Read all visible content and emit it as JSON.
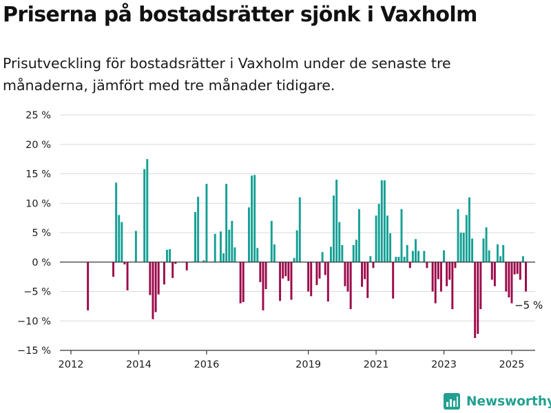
{
  "title": "Priserna på bostadsrätter sjönk i Vaxholm",
  "subtitle": "Prisutveckling för bostadsrätter i Vaxholm under de senaste tre månaderna, jämfört med tre månader tidigare.",
  "brand": {
    "name": "Newsworthy",
    "icon": "newsworthy-logo-icon"
  },
  "colors": {
    "positive": "#16a095",
    "negative": "#9b0b4a",
    "grid": "#d9d9d9",
    "axis": "#333333",
    "text": "#1a1a1a"
  },
  "annotation": {
    "label": "−5 %",
    "date": "2025-02",
    "value": -5
  },
  "chart_data": {
    "type": "bar",
    "x_type": "monthly",
    "y_unit": "%",
    "ylim": [
      -15,
      25
    ],
    "yticks": [
      -15,
      -10,
      -5,
      0,
      5,
      10,
      15,
      20,
      25
    ],
    "ytick_labels": [
      "−15 %",
      "−10 %",
      "−5 %",
      "0 %",
      "5 %",
      "10 %",
      "15 %",
      "20 %",
      "25 %"
    ],
    "xticks": [
      "2012",
      "2014",
      "2016",
      "2019",
      "2021",
      "2023",
      "2025"
    ],
    "grid": true,
    "legend": "none",
    "series": [
      {
        "values": [
          [
            "2012-07",
            -8.2
          ],
          [
            "2013-04",
            -2.5
          ],
          [
            "2013-05",
            13.5
          ],
          [
            "2013-06",
            8.0
          ],
          [
            "2013-07",
            6.8
          ],
          [
            "2013-08",
            -0.4
          ],
          [
            "2013-09",
            -4.8
          ],
          [
            "2013-12",
            5.3
          ],
          [
            "2014-03",
            15.8
          ],
          [
            "2014-04",
            17.5
          ],
          [
            "2014-05",
            -5.6
          ],
          [
            "2014-06",
            -9.7
          ],
          [
            "2014-07",
            -8.5
          ],
          [
            "2014-08",
            -5.5
          ],
          [
            "2014-10",
            -3.8
          ],
          [
            "2014-11",
            2.1
          ],
          [
            "2014-12",
            2.2
          ],
          [
            "2015-01",
            -2.7
          ],
          [
            "2015-02",
            -0.3
          ],
          [
            "2015-06",
            -1.4
          ],
          [
            "2015-09",
            8.5
          ],
          [
            "2015-10",
            11.1
          ],
          [
            "2015-12",
            0.3
          ],
          [
            "2016-01",
            13.3
          ],
          [
            "2016-04",
            4.8
          ],
          [
            "2016-06",
            5.2
          ],
          [
            "2016-07",
            1.5
          ],
          [
            "2016-08",
            13.3
          ],
          [
            "2016-09",
            5.5
          ],
          [
            "2016-10",
            7.0
          ],
          [
            "2016-11",
            2.5
          ],
          [
            "2017-01",
            -7.0
          ],
          [
            "2017-02",
            -6.8
          ],
          [
            "2017-04",
            9.3
          ],
          [
            "2017-05",
            14.7
          ],
          [
            "2017-06",
            14.8
          ],
          [
            "2017-07",
            2.4
          ],
          [
            "2017-08",
            -3.4
          ],
          [
            "2017-09",
            -8.2
          ],
          [
            "2017-10",
            -4.6
          ],
          [
            "2017-12",
            7.0
          ],
          [
            "2018-01",
            3.0
          ],
          [
            "2018-03",
            -6.6
          ],
          [
            "2018-04",
            -2.8
          ],
          [
            "2018-05",
            -2.4
          ],
          [
            "2018-06",
            -3.2
          ],
          [
            "2018-07",
            -6.4
          ],
          [
            "2018-08",
            0.7
          ],
          [
            "2018-09",
            5.4
          ],
          [
            "2018-10",
            11.0
          ],
          [
            "2019-01",
            -5.0
          ],
          [
            "2019-02",
            -5.8
          ],
          [
            "2019-04",
            -3.9
          ],
          [
            "2019-05",
            -2.8
          ],
          [
            "2019-06",
            1.7
          ],
          [
            "2019-07",
            -2.2
          ],
          [
            "2019-08",
            -6.7
          ],
          [
            "2019-09",
            2.6
          ],
          [
            "2019-10",
            11.3
          ],
          [
            "2019-11",
            14.0
          ],
          [
            "2019-12",
            6.8
          ],
          [
            "2020-01",
            2.9
          ],
          [
            "2020-02",
            -4.1
          ],
          [
            "2020-03",
            -5.0
          ],
          [
            "2020-04",
            -8.0
          ],
          [
            "2020-05",
            2.9
          ],
          [
            "2020-06",
            3.8
          ],
          [
            "2020-07",
            9.0
          ],
          [
            "2020-08",
            -4.2
          ],
          [
            "2020-09",
            -2.9
          ],
          [
            "2020-10",
            -6.1
          ],
          [
            "2020-11",
            1.0
          ],
          [
            "2020-12",
            -1.0
          ],
          [
            "2021-01",
            7.9
          ],
          [
            "2021-02",
            9.9
          ],
          [
            "2021-03",
            13.9
          ],
          [
            "2021-04",
            13.9
          ],
          [
            "2021-05",
            7.9
          ],
          [
            "2021-06",
            4.9
          ],
          [
            "2021-07",
            -6.2
          ],
          [
            "2021-08",
            0.9
          ],
          [
            "2021-09",
            0.9
          ],
          [
            "2021-10",
            9.0
          ],
          [
            "2021-11",
            0.9
          ],
          [
            "2021-12",
            2.9
          ],
          [
            "2022-01",
            -1.0
          ],
          [
            "2022-02",
            1.9
          ],
          [
            "2022-03",
            3.9
          ],
          [
            "2022-04",
            1.9
          ],
          [
            "2022-06",
            1.9
          ],
          [
            "2022-07",
            -1.0
          ],
          [
            "2022-09",
            -5.0
          ],
          [
            "2022-10",
            -7.0
          ],
          [
            "2022-11",
            -2.9
          ],
          [
            "2022-12",
            -5.0
          ],
          [
            "2023-01",
            2.0
          ],
          [
            "2023-02",
            -4.1
          ],
          [
            "2023-03",
            -3.0
          ],
          [
            "2023-04",
            -8.0
          ],
          [
            "2023-05",
            -1.0
          ],
          [
            "2023-06",
            9.0
          ],
          [
            "2023-07",
            5.0
          ],
          [
            "2023-08",
            5.0
          ],
          [
            "2023-09",
            8.0
          ],
          [
            "2023-10",
            11.0
          ],
          [
            "2023-11",
            4.0
          ],
          [
            "2023-12",
            -12.9
          ],
          [
            "2024-01",
            -12.2
          ],
          [
            "2024-02",
            -8.0
          ],
          [
            "2024-03",
            4.0
          ],
          [
            "2024-04",
            5.9
          ],
          [
            "2024-05",
            2.0
          ],
          [
            "2024-06",
            -3.0
          ],
          [
            "2024-07",
            -4.1
          ],
          [
            "2024-08",
            3.0
          ],
          [
            "2024-09",
            1.0
          ],
          [
            "2024-10",
            2.9
          ],
          [
            "2024-11",
            -5.0
          ],
          [
            "2024-12",
            -6.0
          ],
          [
            "2025-01",
            -7.0
          ],
          [
            "2025-02",
            -2.1
          ],
          [
            "2025-03",
            -2.0
          ],
          [
            "2025-04",
            -3.0
          ],
          [
            "2025-05",
            1.0
          ],
          [
            "2025-06",
            -5.0
          ]
        ]
      }
    ]
  }
}
